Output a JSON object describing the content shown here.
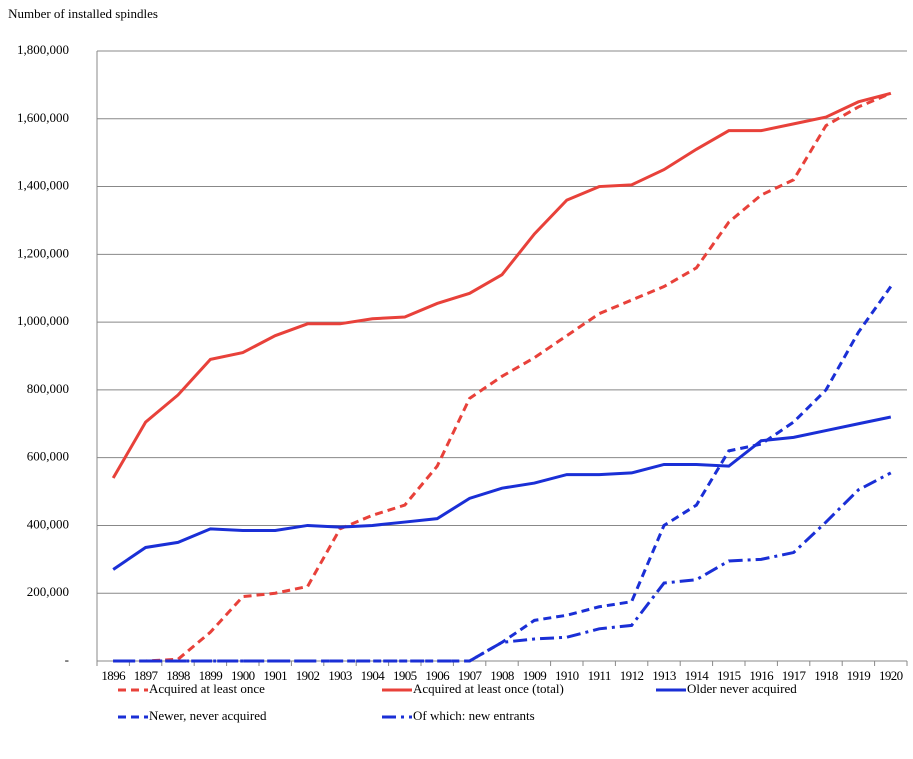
{
  "chart_data": {
    "type": "line",
    "y_label": "Number of installed spindles",
    "categories": [
      "1896",
      "1897",
      "1898",
      "1899",
      "1900",
      "1901",
      "1902",
      "1903",
      "1904",
      "1905",
      "1906",
      "1907",
      "1908",
      "1909",
      "1910",
      "1911",
      "1912",
      "1913",
      "1914",
      "1915",
      "1916",
      "1917",
      "1918",
      "1919",
      "1920"
    ],
    "series": [
      {
        "name": "Acquired at least once",
        "color": "#e8413a",
        "dash": "dashed",
        "values": [
          0,
          0,
          5000,
          85000,
          190000,
          200000,
          220000,
          390000,
          430000,
          460000,
          575000,
          775000,
          840000,
          895000,
          960000,
          1025000,
          1065000,
          1105000,
          1160000,
          1295000,
          1375000,
          1420000,
          1580000,
          1635000,
          1675000
        ]
      },
      {
        "name": "Acquired at least once (total)",
        "color": "#e8413a",
        "dash": "solid",
        "values": [
          540000,
          705000,
          785000,
          890000,
          910000,
          960000,
          995000,
          995000,
          1010000,
          1015000,
          1055000,
          1085000,
          1140000,
          1260000,
          1360000,
          1400000,
          1405000,
          1450000,
          1510000,
          1565000,
          1565000,
          1585000,
          1605000,
          1650000,
          1675000
        ]
      },
      {
        "name": "Older never acquired",
        "color": "#1a2fd6",
        "dash": "solid",
        "values": [
          270000,
          335000,
          350000,
          390000,
          385000,
          385000,
          400000,
          395000,
          400000,
          410000,
          420000,
          480000,
          510000,
          525000,
          550000,
          550000,
          555000,
          580000,
          580000,
          575000,
          650000,
          660000,
          680000,
          700000,
          720000
        ]
      },
      {
        "name": "Newer, never acquired",
        "color": "#1a2fd6",
        "dash": "dashed",
        "values": [
          0,
          0,
          0,
          0,
          0,
          0,
          0,
          0,
          0,
          0,
          0,
          0,
          55000,
          120000,
          135000,
          160000,
          175000,
          400000,
          460000,
          620000,
          640000,
          705000,
          800000,
          970000,
          1105000
        ]
      },
      {
        "name": "Of which: new entrants",
        "color": "#1a2fd6",
        "dash": "dashdot",
        "values": [
          0,
          0,
          0,
          0,
          0,
          0,
          0,
          0,
          0,
          0,
          0,
          0,
          55000,
          65000,
          70000,
          95000,
          105000,
          230000,
          240000,
          295000,
          300000,
          320000,
          410000,
          505000,
          555000
        ]
      }
    ],
    "ylim": [
      0,
      1800000
    ],
    "yticks": [
      {
        "value": 0,
        "label": "-"
      },
      {
        "value": 200000,
        "label": "200,000"
      },
      {
        "value": 400000,
        "label": "400,000"
      },
      {
        "value": 600000,
        "label": "600,000"
      },
      {
        "value": 800000,
        "label": "800,000"
      },
      {
        "value": 1000000,
        "label": "1,000,000"
      },
      {
        "value": 1200000,
        "label": "1,200,000"
      },
      {
        "value": 1400000,
        "label": "1,400,000"
      },
      {
        "value": 1600000,
        "label": "1,600,000"
      },
      {
        "value": 1800000,
        "label": "1,800,000"
      }
    ],
    "grid": true,
    "legend": "bottom"
  }
}
